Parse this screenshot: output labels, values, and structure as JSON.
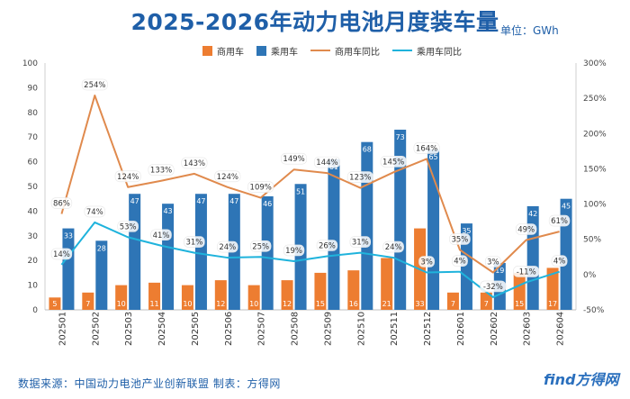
{
  "header": {
    "title": "2025-2026年动力电池月度装车量",
    "unit": "单位：GWh"
  },
  "footer": {
    "source": "数据来源：中国动力电池产业创新联盟   制表：方得网",
    "brand": "find方得网"
  },
  "colors": {
    "commercial": "#ed7d31",
    "passenger": "#2e75b6",
    "commercial_yoy": "#e08a4d",
    "passenger_yoy": "#1fb3dc",
    "title": "#1f5fa8"
  },
  "chart_data": {
    "type": "bar",
    "categories": [
      "202501",
      "202502",
      "202503",
      "202504",
      "202505",
      "202506",
      "202507",
      "202508",
      "202509",
      "202510",
      "202511",
      "202512",
      "202601",
      "202602",
      "202603",
      "202604"
    ],
    "series": [
      {
        "name": "商用车",
        "type": "bar",
        "axis": "left",
        "values": [
          5,
          7,
          10,
          11,
          10,
          12,
          10,
          12,
          15,
          16,
          21,
          33,
          7,
          7,
          15,
          17
        ]
      },
      {
        "name": "乘用车",
        "type": "bar",
        "axis": "left",
        "values": [
          33,
          28,
          47,
          43,
          47,
          47,
          46,
          51,
          61,
          68,
          73,
          65,
          35,
          19,
          42,
          45
        ]
      },
      {
        "name": "商用车同比",
        "type": "line",
        "axis": "right",
        "values": [
          86,
          254,
          124,
          133,
          143,
          124,
          109,
          149,
          144,
          123,
          145,
          164,
          35,
          3,
          49,
          61
        ],
        "labels": [
          "86%",
          "254%",
          "124%",
          "133%",
          "143%",
          "124%",
          "109%",
          "149%",
          "144%",
          "123%",
          "145%",
          "164%",
          "35%",
          "3%",
          "49%",
          "61%"
        ]
      },
      {
        "name": "乘用车同比",
        "type": "line",
        "axis": "right",
        "values": [
          14,
          74,
          53,
          41,
          31,
          24,
          25,
          19,
          26,
          31,
          24,
          3,
          4,
          -32,
          -11,
          4
        ],
        "labels": [
          "14%",
          "74%",
          "53%",
          "41%",
          "31%",
          "24%",
          "25%",
          "19%",
          "26%",
          "31%",
          "24%",
          "3%",
          "4%",
          "-32%",
          "-11%",
          "4%"
        ]
      }
    ],
    "ylim_left": [
      0,
      100
    ],
    "ylim_right": [
      -50,
      300
    ],
    "yticks_left": [
      "0",
      "10",
      "20",
      "30",
      "40",
      "50",
      "60",
      "70",
      "80",
      "90",
      "100"
    ],
    "yticks_right": [
      "-50%",
      "0%",
      "50%",
      "100%",
      "150%",
      "200%",
      "250%",
      "300%"
    ],
    "grid": false,
    "legend_position": "top-center"
  }
}
